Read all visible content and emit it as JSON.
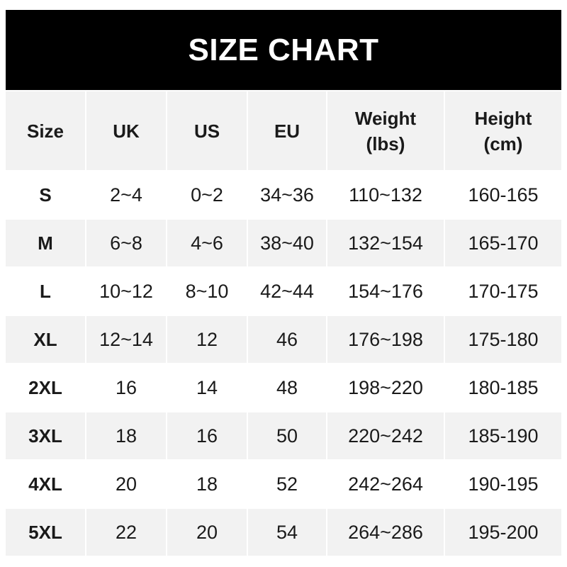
{
  "title": "SIZE CHART",
  "headers": [
    "Size",
    "UK",
    "US",
    "EU",
    "Weight\n(lbs)",
    "Height\n(cm)"
  ],
  "rows": [
    [
      "S",
      "2~4",
      "0~2",
      "34~36",
      "110~132",
      "160-165"
    ],
    [
      "M",
      "6~8",
      "4~6",
      "38~40",
      "132~154",
      "165-170"
    ],
    [
      "L",
      "10~12",
      "8~10",
      "42~44",
      "154~176",
      "170-175"
    ],
    [
      "XL",
      "12~14",
      "12",
      "46",
      "176~198",
      "175-180"
    ],
    [
      "2XL",
      "16",
      "14",
      "48",
      "198~220",
      "180-185"
    ],
    [
      "3XL",
      "18",
      "16",
      "50",
      "220~242",
      "185-190"
    ],
    [
      "4XL",
      "20",
      "18",
      "52",
      "242~264",
      "190-195"
    ],
    [
      "5XL",
      "22",
      "20",
      "54",
      "264~286",
      "195-200"
    ]
  ],
  "colors": {
    "title_bg": "#000000",
    "title_text": "#ffffff",
    "stripe": "#f2f2f2",
    "text": "#1a1a1a"
  }
}
